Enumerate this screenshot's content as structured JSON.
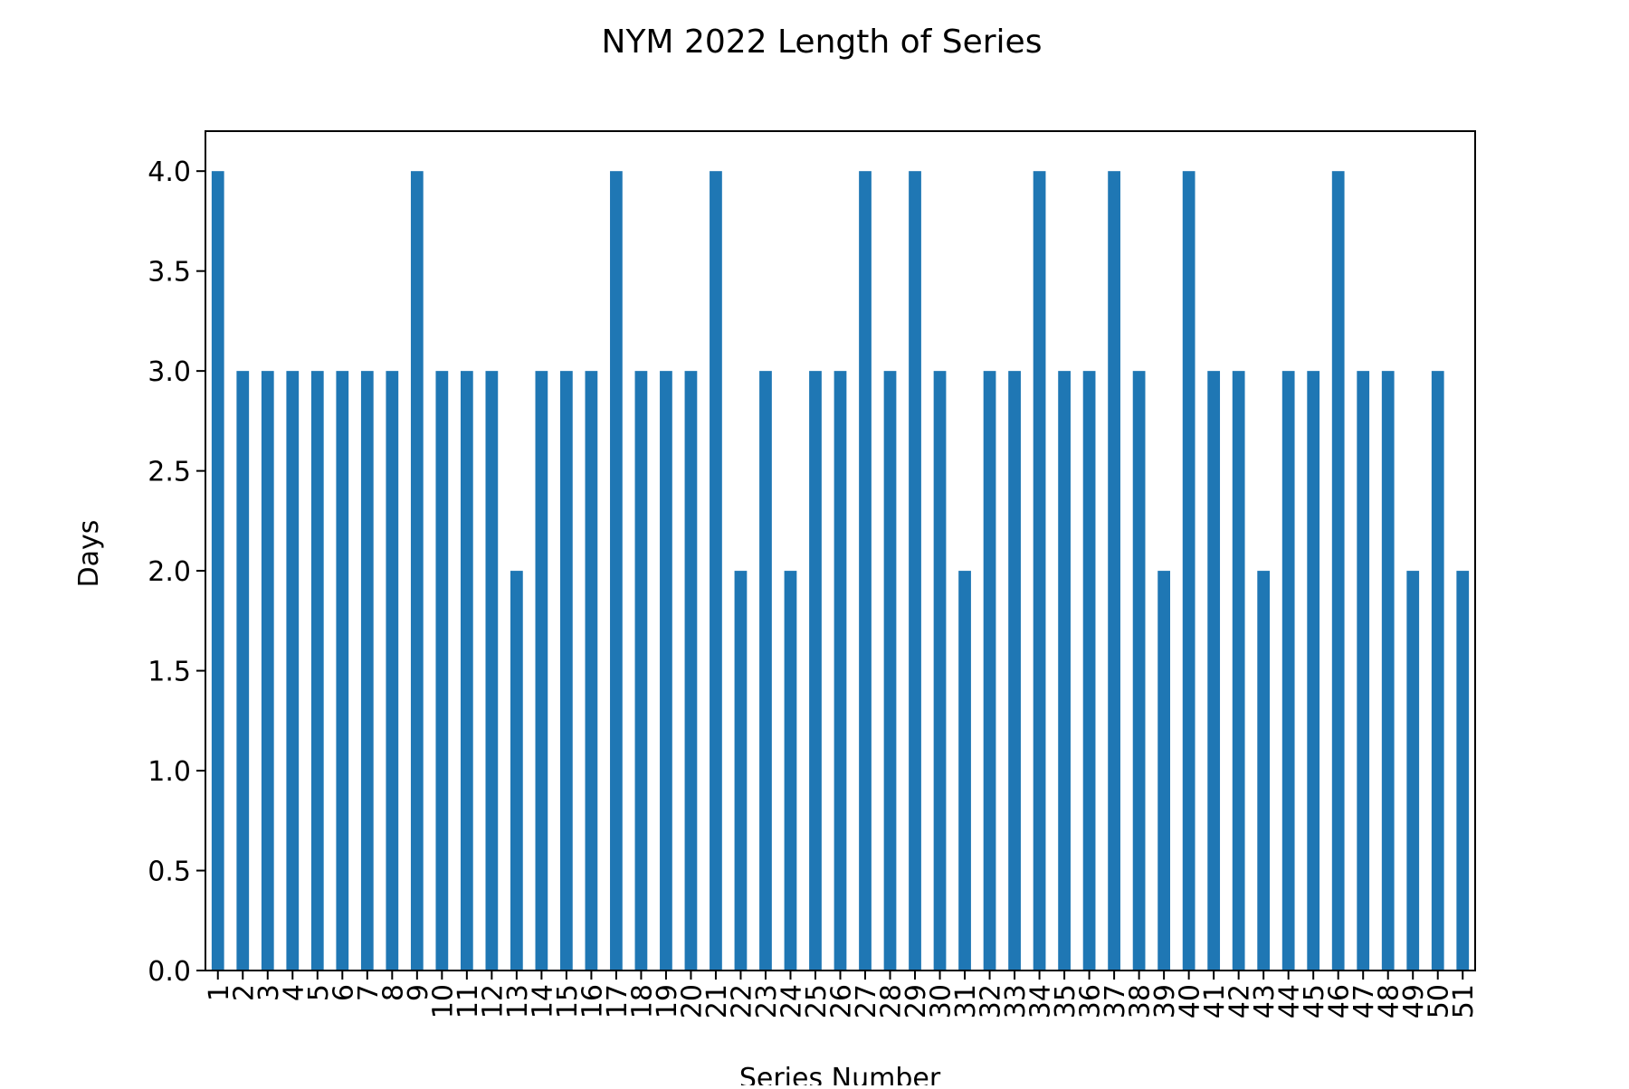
{
  "chart_data": {
    "type": "bar",
    "title": "NYM 2022 Length of Series",
    "xlabel": "Series Number",
    "ylabel": "Days",
    "categories": [
      "1",
      "2",
      "3",
      "4",
      "5",
      "6",
      "7",
      "8",
      "9",
      "10",
      "11",
      "12",
      "13",
      "14",
      "15",
      "16",
      "17",
      "18",
      "19",
      "20",
      "21",
      "22",
      "23",
      "24",
      "25",
      "26",
      "27",
      "28",
      "29",
      "30",
      "31",
      "32",
      "33",
      "34",
      "35",
      "36",
      "37",
      "38",
      "39",
      "40",
      "41",
      "42",
      "43",
      "44",
      "45",
      "46",
      "47",
      "48",
      "49",
      "50",
      "51"
    ],
    "values": [
      4,
      3,
      3,
      3,
      3,
      3,
      3,
      3,
      4,
      3,
      3,
      3,
      2,
      3,
      3,
      3,
      4,
      3,
      3,
      3,
      4,
      2,
      3,
      2,
      3,
      3,
      4,
      3,
      4,
      3,
      2,
      3,
      3,
      4,
      3,
      3,
      4,
      3,
      2,
      4,
      3,
      3,
      2,
      3,
      3,
      4,
      3,
      3,
      2,
      3,
      2
    ],
    "ylim": [
      0,
      4.2
    ],
    "yticks": [
      "0.0",
      "0.5",
      "1.0",
      "1.5",
      "2.0",
      "2.5",
      "3.0",
      "3.5",
      "4.0"
    ],
    "grid": false,
    "legend": "none",
    "bar_color": "#1f77b4"
  }
}
